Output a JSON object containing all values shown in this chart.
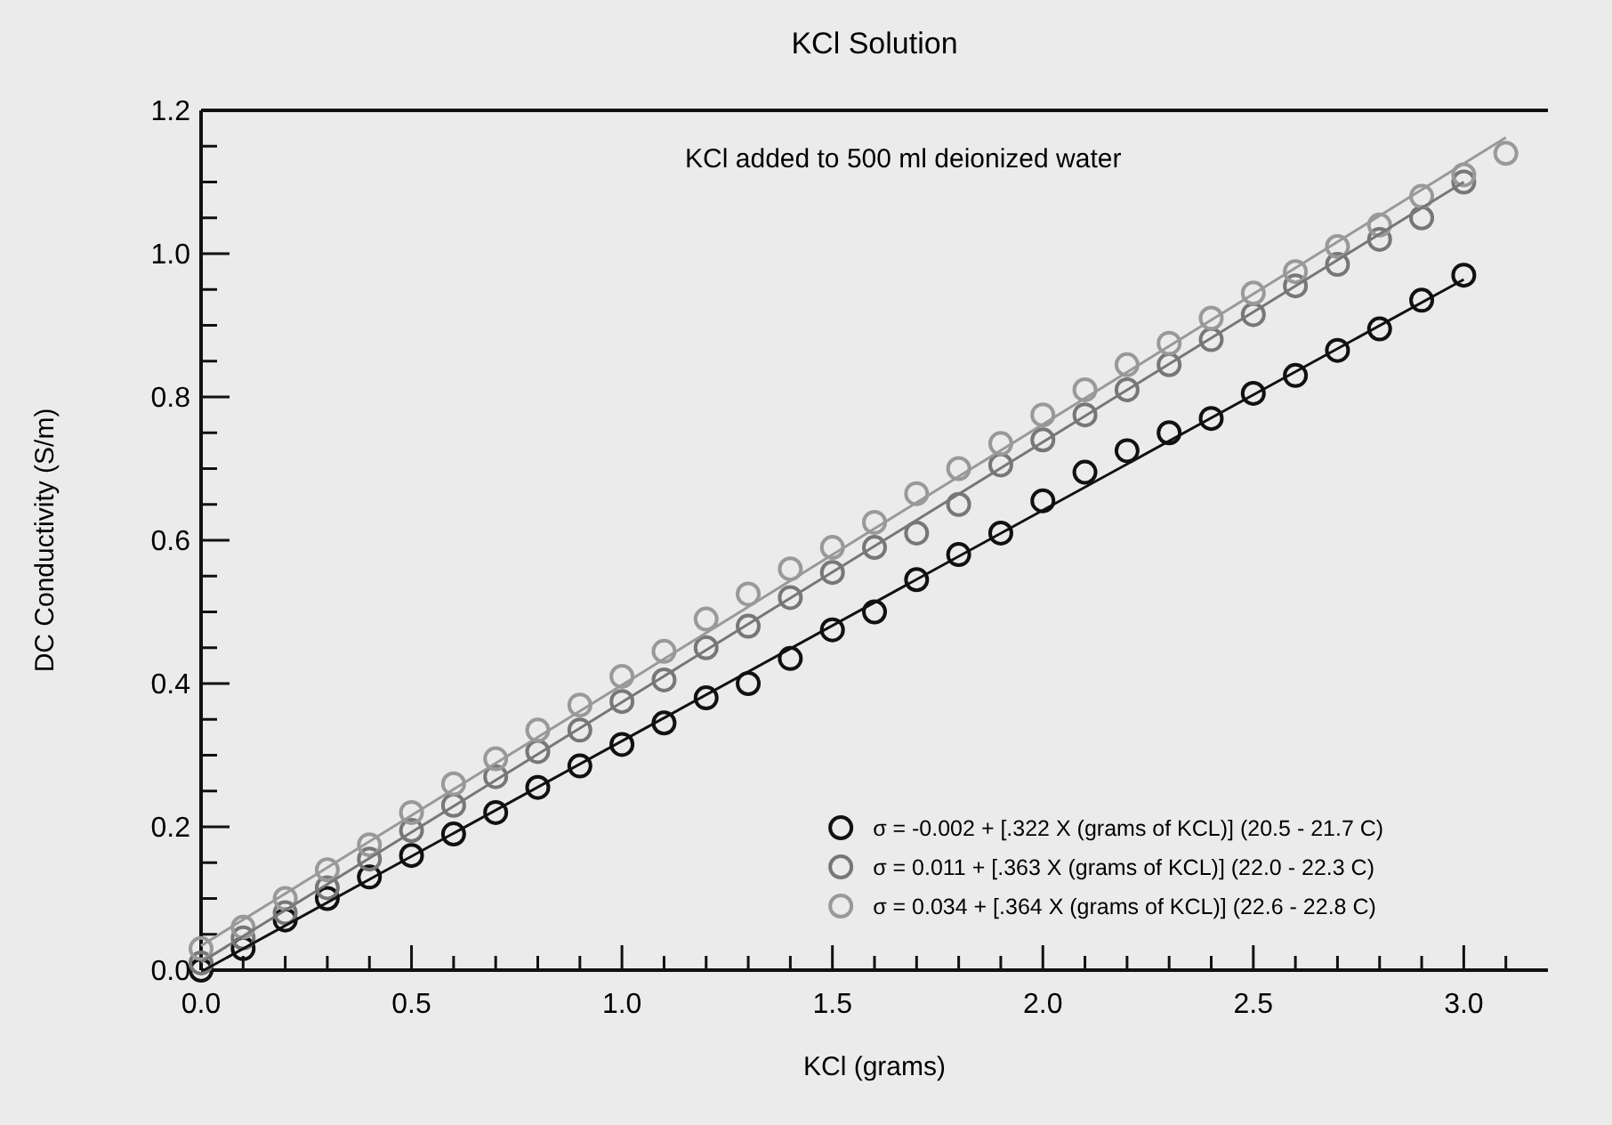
{
  "chart_data": {
    "type": "scatter",
    "title": "KCl Solution",
    "xlabel": "KCl (grams)",
    "ylabel": "DC Conductivity (S/m)",
    "annotations": [
      "KCl added to 500 ml deionized water"
    ],
    "xlim": [
      0,
      3.2
    ],
    "ylim": [
      0,
      1.2
    ],
    "xticks": [
      {
        "value": 0,
        "label": "0.0"
      },
      {
        "value": 0.1,
        "label": null
      },
      {
        "value": 0.2,
        "label": null
      },
      {
        "value": 0.3,
        "label": null
      },
      {
        "value": 0.4,
        "label": null
      },
      {
        "value": 0.5,
        "label": "0.5"
      },
      {
        "value": 0.6,
        "label": null
      },
      {
        "value": 0.7,
        "label": null
      },
      {
        "value": 0.8,
        "label": null
      },
      {
        "value": 0.9,
        "label": null
      },
      {
        "value": 1,
        "label": "1.0"
      },
      {
        "value": 1.1,
        "label": null
      },
      {
        "value": 1.2,
        "label": null
      },
      {
        "value": 1.3,
        "label": null
      },
      {
        "value": 1.4,
        "label": null
      },
      {
        "value": 1.5,
        "label": "1.5"
      },
      {
        "value": 1.6,
        "label": null
      },
      {
        "value": 1.7,
        "label": null
      },
      {
        "value": 1.8,
        "label": null
      },
      {
        "value": 1.9,
        "label": null
      },
      {
        "value": 2,
        "label": "2.0"
      },
      {
        "value": 2.1,
        "label": null
      },
      {
        "value": 2.2,
        "label": null
      },
      {
        "value": 2.3,
        "label": null
      },
      {
        "value": 2.4,
        "label": null
      },
      {
        "value": 2.5,
        "label": "2.5"
      },
      {
        "value": 2.6,
        "label": null
      },
      {
        "value": 2.7,
        "label": null
      },
      {
        "value": 2.8,
        "label": null
      },
      {
        "value": 2.9,
        "label": null
      },
      {
        "value": 3,
        "label": "3.0"
      },
      {
        "value": 3.1,
        "label": null
      }
    ],
    "yticks": [
      {
        "value": 0,
        "label": "0.0"
      },
      {
        "value": 0.05,
        "label": null
      },
      {
        "value": 0.1,
        "label": null
      },
      {
        "value": 0.15,
        "label": null
      },
      {
        "value": 0.2,
        "label": "0.2"
      },
      {
        "value": 0.25,
        "label": null
      },
      {
        "value": 0.3,
        "label": null
      },
      {
        "value": 0.35,
        "label": null
      },
      {
        "value": 0.4,
        "label": "0.4"
      },
      {
        "value": 0.45,
        "label": null
      },
      {
        "value": 0.5,
        "label": null
      },
      {
        "value": 0.55,
        "label": null
      },
      {
        "value": 0.6,
        "label": "0.6"
      },
      {
        "value": 0.65,
        "label": null
      },
      {
        "value": 0.7,
        "label": null
      },
      {
        "value": 0.75,
        "label": null
      },
      {
        "value": 0.8,
        "label": "0.8"
      },
      {
        "value": 0.85,
        "label": null
      },
      {
        "value": 0.9,
        "label": null
      },
      {
        "value": 0.95,
        "label": null
      },
      {
        "value": 1,
        "label": "1.0"
      },
      {
        "value": 1.05,
        "label": null
      },
      {
        "value": 1.1,
        "label": null
      },
      {
        "value": 1.15,
        "label": null
      },
      {
        "value": 1.2,
        "label": "1.2"
      }
    ],
    "grid": false,
    "legend": "bottom right",
    "marker": "circle",
    "x": [
      0,
      0.1,
      0.2,
      0.3,
      0.4,
      0.5,
      0.6,
      0.7,
      0.8,
      0.9,
      1.0,
      1.1,
      1.2,
      1.3,
      1.4,
      1.5,
      1.6,
      1.7,
      1.8,
      1.9,
      2.0,
      2.1,
      2.2,
      2.3,
      2.4,
      2.5,
      2.6,
      2.7,
      2.8,
      2.9,
      3.0
    ],
    "series": [
      {
        "name": "σ = -0.002 + [.322 X (grams of KCL)] (20.5 - 21.7 C)",
        "color": "#111111",
        "values": [
          0.0,
          0.03,
          0.07,
          0.1,
          0.13,
          0.16,
          0.19,
          0.22,
          0.255,
          0.285,
          0.315,
          0.345,
          0.38,
          0.4,
          0.435,
          0.475,
          0.5,
          0.545,
          0.58,
          0.61,
          0.655,
          0.695,
          0.725,
          0.75,
          0.77,
          0.805,
          0.83,
          0.865,
          0.895,
          0.935,
          0.97
        ]
      },
      {
        "name": "σ = 0.011 + [.363 X (grams of KCL)] (22.0 - 22.3 C)",
        "color": "#777777",
        "values": [
          0.01,
          0.045,
          0.08,
          0.115,
          0.155,
          0.195,
          0.23,
          0.27,
          0.305,
          0.335,
          0.375,
          0.405,
          0.45,
          0.48,
          0.52,
          0.555,
          0.59,
          0.61,
          0.65,
          0.705,
          0.74,
          0.775,
          0.81,
          0.845,
          0.88,
          0.915,
          0.955,
          0.985,
          1.02,
          1.05,
          1.1
        ]
      },
      {
        "name": "σ = 0.034 + [.364 X (grams of KCL)] (22.6 - 22.8 C)",
        "color": "#999999",
        "x": [
          0,
          0.1,
          0.2,
          0.3,
          0.4,
          0.5,
          0.6,
          0.7,
          0.8,
          0.9,
          1.0,
          1.1,
          1.2,
          1.3,
          1.4,
          1.5,
          1.6,
          1.7,
          1.8,
          1.9,
          2.0,
          2.1,
          2.2,
          2.3,
          2.4,
          2.5,
          2.6,
          2.7,
          2.8,
          2.9,
          3.0,
          3.1
        ],
        "values": [
          0.03,
          0.06,
          0.1,
          0.14,
          0.175,
          0.22,
          0.26,
          0.295,
          0.335,
          0.37,
          0.41,
          0.445,
          0.49,
          0.525,
          0.56,
          0.59,
          0.625,
          0.665,
          0.7,
          0.735,
          0.775,
          0.81,
          0.845,
          0.875,
          0.91,
          0.945,
          0.975,
          1.01,
          1.04,
          1.08,
          1.11,
          1.14
        ]
      },
      {
        "type": "line",
        "color": "#111111",
        "x": [
          0.01,
          3.0
        ],
        "values": [
          0.001,
          0.964
        ],
        "marker": "none"
      },
      {
        "type": "line",
        "color": "#777777",
        "x": [
          0,
          3.0
        ],
        "values": [
          0.011,
          1.1
        ],
        "marker": "none"
      },
      {
        "type": "line",
        "color": "#999999",
        "x": [
          0,
          3.1
        ],
        "values": [
          0.034,
          1.162
        ],
        "marker": "none"
      }
    ]
  }
}
